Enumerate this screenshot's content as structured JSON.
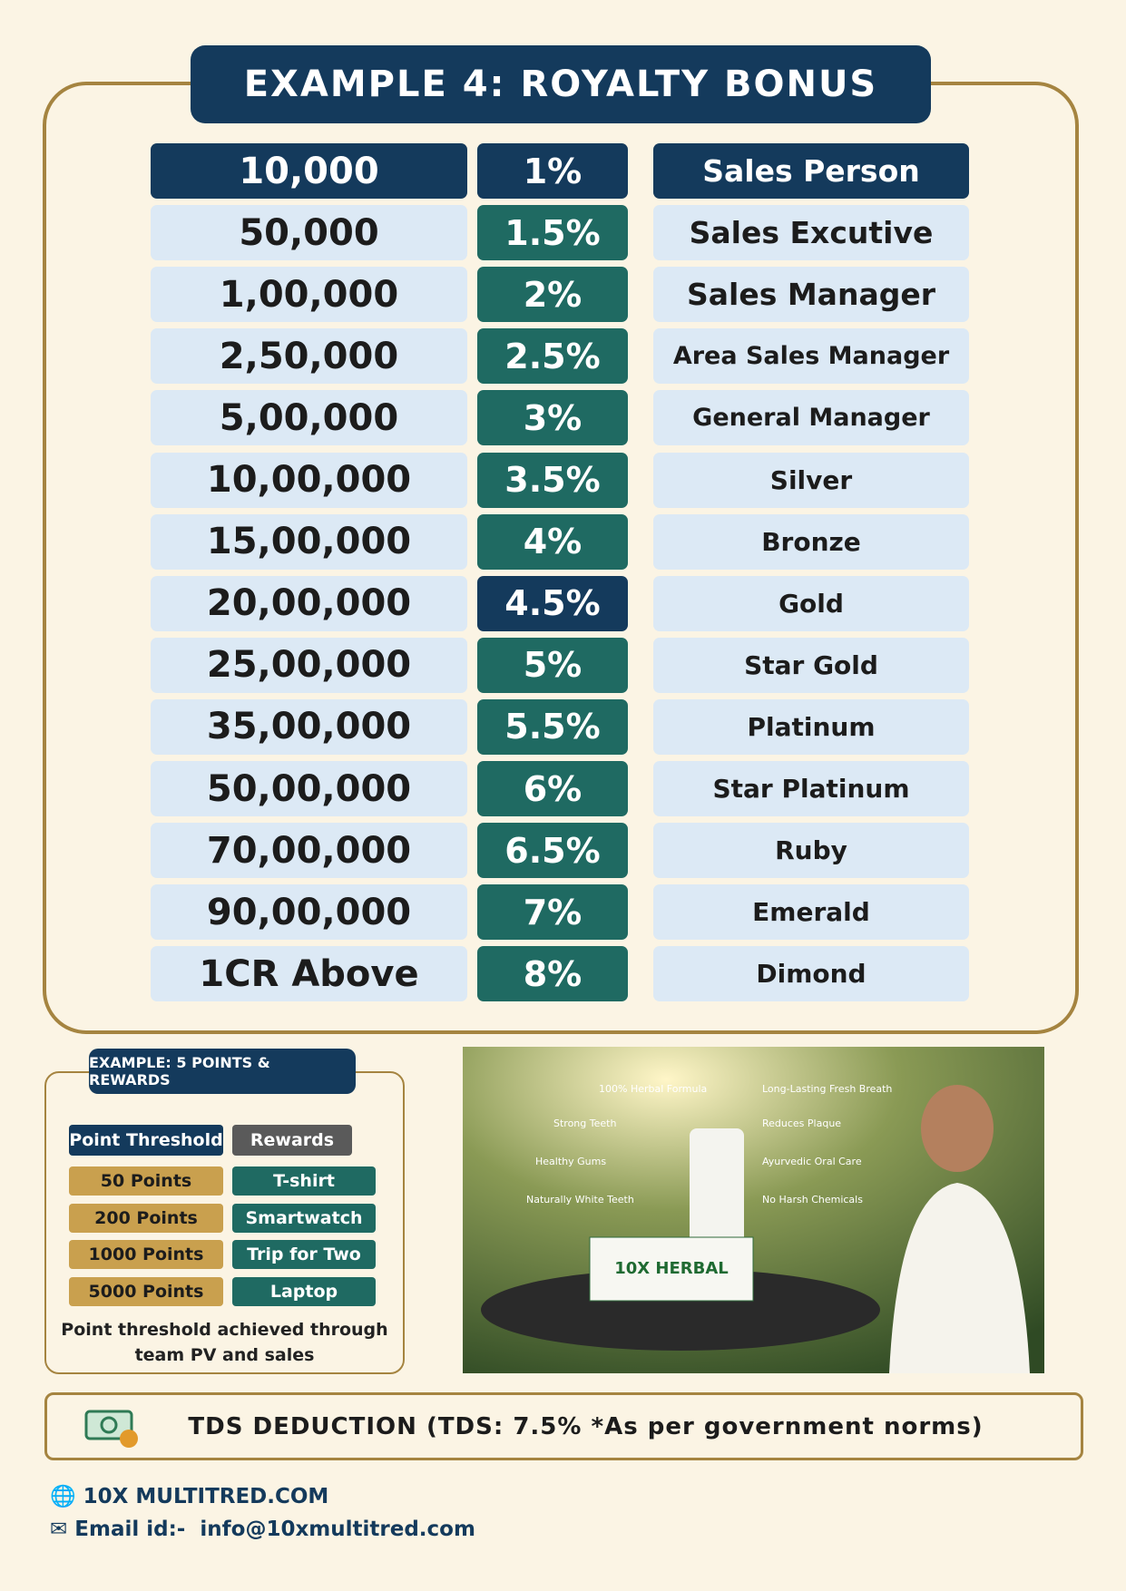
{
  "title": "EXAMPLE 4: ROYALTY BONUS",
  "table": {
    "rows": [
      [
        "10,000",
        "1%",
        "Sales Person"
      ],
      [
        "50,000",
        "1.5%",
        "Sales Excutive"
      ],
      [
        "1,00,000",
        "2%",
        "Sales Manager"
      ],
      [
        "2,50,000",
        "2.5%",
        "Area Sales Manager"
      ],
      [
        "5,00,000",
        "3%",
        "General Manager"
      ],
      [
        "10,00,000",
        "3.5%",
        "Silver"
      ],
      [
        "15,00,000",
        "4%",
        "Bronze"
      ],
      [
        "20,00,000",
        "4.5%",
        "Gold"
      ],
      [
        "25,00,000",
        "5%",
        "Star Gold"
      ],
      [
        "35,00,000",
        "5.5%",
        "Platinum"
      ],
      [
        "50,00,000",
        "6%",
        "Star Platinum"
      ],
      [
        "70,00,000",
        "6.5%",
        "Ruby"
      ],
      [
        "90,00,000",
        "7%",
        "Emerald"
      ],
      [
        "1CR Above",
        "8%",
        "Dimond"
      ]
    ]
  },
  "points": {
    "title": "EXAMPLE: 5 POINTS & REWARDS",
    "header": [
      "Point Threshold",
      "Rewards"
    ],
    "rows": [
      [
        "50 Points",
        "T-shirt"
      ],
      [
        "200 Points",
        "Smartwatch"
      ],
      [
        "1000 Points",
        "Trip for Two"
      ],
      [
        "5000 Points",
        "Laptop"
      ]
    ],
    "caption": [
      "Point threshold achieved through",
      "team PV and sales"
    ]
  },
  "product": {
    "brand": "10X HERBAL",
    "callouts": [
      "100% Herbal Formula",
      "Long-Lasting Fresh Breath",
      "Strong Teeth",
      "Reduces Plaque",
      "Healthy Gums",
      "Ayurvedic Oral Care",
      "Naturally White Teeth",
      "No Harsh Chemicals"
    ]
  },
  "tds": "TDS DEDUCTION (TDS: 7.5% *As per government norms)",
  "footer": {
    "website": "10X MULTITRED.COM",
    "email_label": "Email id:-",
    "email": "info@10xmultitred.com"
  }
}
